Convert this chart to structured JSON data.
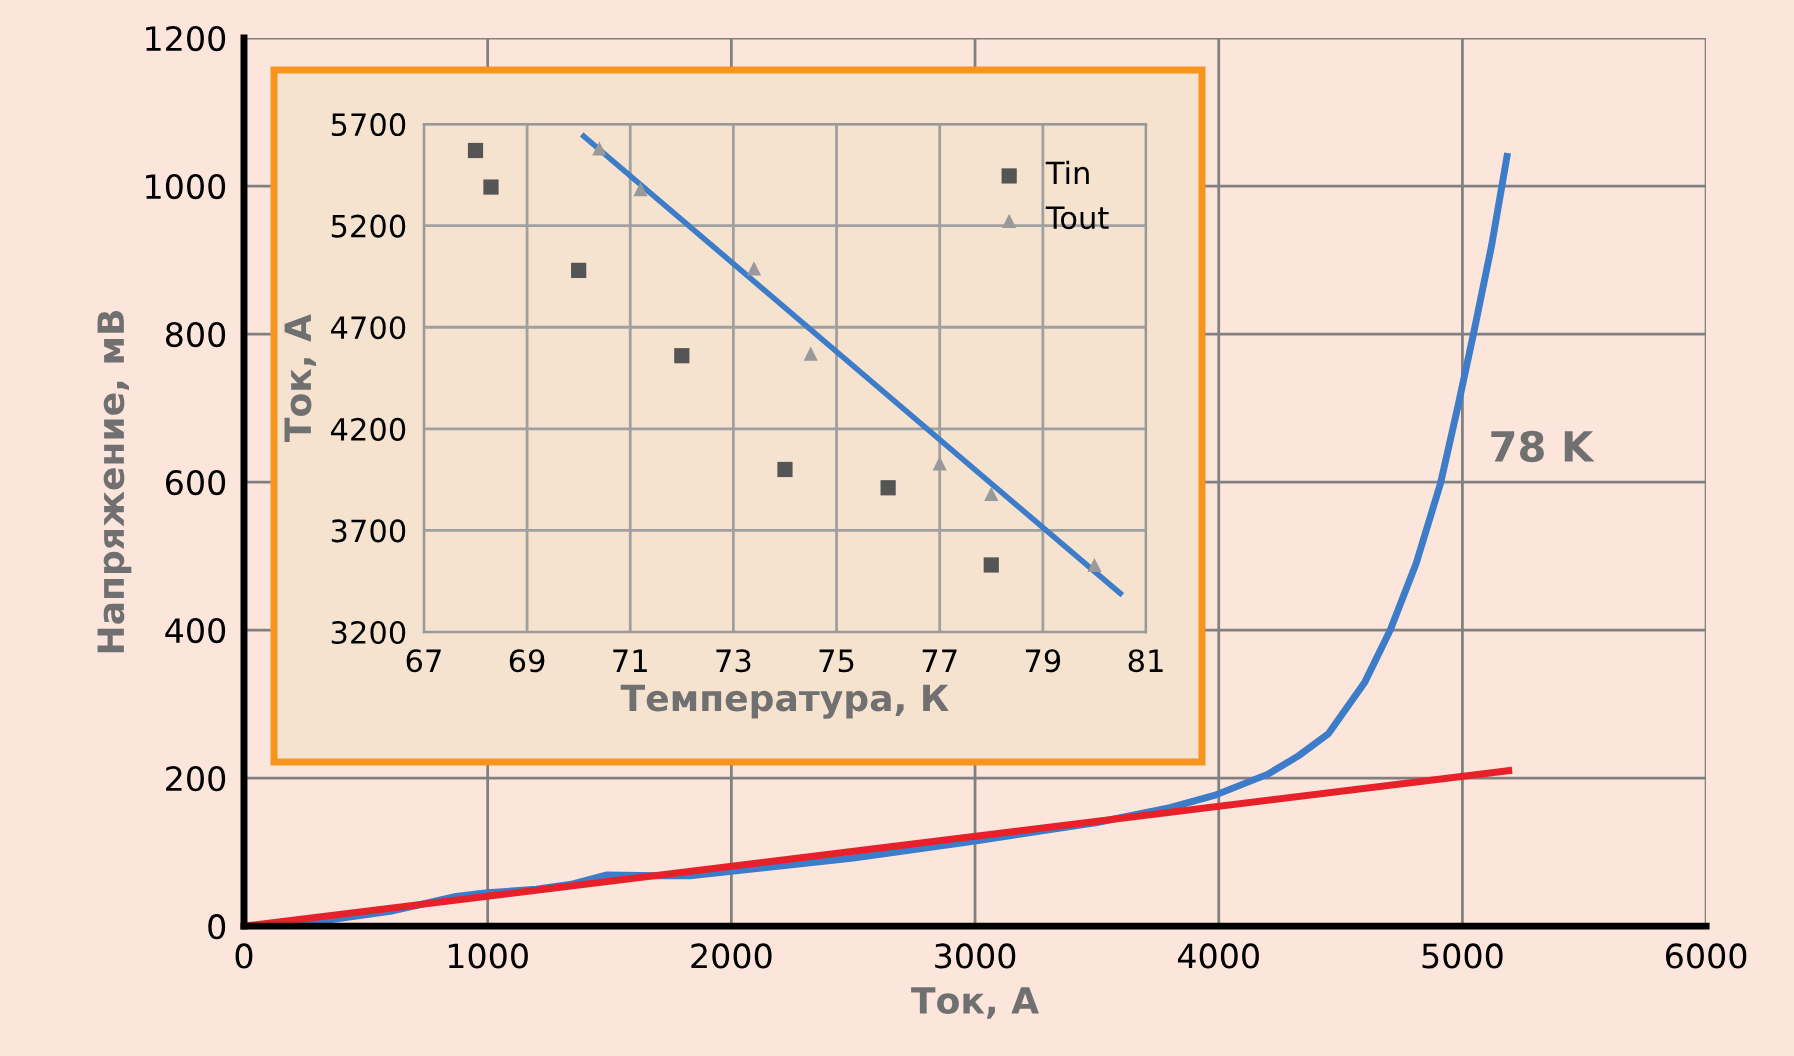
{
  "chart_data": [
    {
      "type": "line",
      "xlabel": "Ток, А",
      "ylabel": "Напряжение, мВ",
      "xlim": [
        0,
        6000
      ],
      "xticks": [
        0,
        1000,
        2000,
        3000,
        4000,
        5000,
        6000
      ],
      "ylim": [
        0,
        1200
      ],
      "yticks": [
        0,
        200,
        400,
        600,
        800,
        1000,
        1200
      ],
      "grid": true,
      "legend": false,
      "marker": "none",
      "line_style": "solid",
      "series": [
        {
          "color": "#3d7cc9",
          "x": [
            0,
            300,
            600,
            870,
            1000,
            1200,
            1350,
            1486,
            1700,
            1830,
            2000,
            2500,
            3000,
            3500,
            3800,
            3986,
            4200,
            4327,
            4450,
            4600,
            4704,
            4810,
            4910,
            4980,
            5046,
            5120,
            5183
          ],
          "values": [
            0,
            6,
            20,
            40,
            45,
            50,
            57,
            69,
            68,
            68,
            74,
            92,
            115,
            140,
            160,
            177,
            205,
            230,
            260,
            330,
            400,
            490,
            598,
            700,
            801,
            920,
            1040
          ]
        },
        {
          "color": "#e8202a",
          "x": [
            0,
            5190
          ],
          "values": [
            0,
            210
          ]
        }
      ],
      "annotations": [
        "78 K"
      ]
    },
    {
      "type": "scatter",
      "xlabel": "Температура, К",
      "ylabel": "Ток, А",
      "xlim": [
        67,
        81
      ],
      "xticks": [
        67,
        69,
        71,
        73,
        75,
        77,
        79,
        81
      ],
      "ylim": [
        3200,
        5700
      ],
      "yticks": [
        3200,
        3700,
        4200,
        4700,
        5200,
        5700
      ],
      "grid": true,
      "legend": "top right",
      "series": [
        {
          "name": "Tin",
          "color": "#555555",
          "marker": "square",
          "x": [
            68,
            68.3,
            70,
            72,
            74,
            76,
            78
          ],
          "values": [
            5570,
            5390,
            4980,
            4560,
            4000,
            3910,
            3530
          ]
        },
        {
          "name": "Tout",
          "color": "#999999",
          "marker": "triangle",
          "x": [
            70.4,
            71.2,
            73.4,
            74.5,
            77,
            78,
            80
          ],
          "values": [
            5580,
            5380,
            4990,
            4570,
            4030,
            3880,
            3530
          ]
        },
        {
          "type": "line",
          "color": "#3d7cc9",
          "marker": "none",
          "x": [
            70.1,
            80.5
          ],
          "values": [
            5640,
            3390
          ]
        }
      ]
    }
  ]
}
